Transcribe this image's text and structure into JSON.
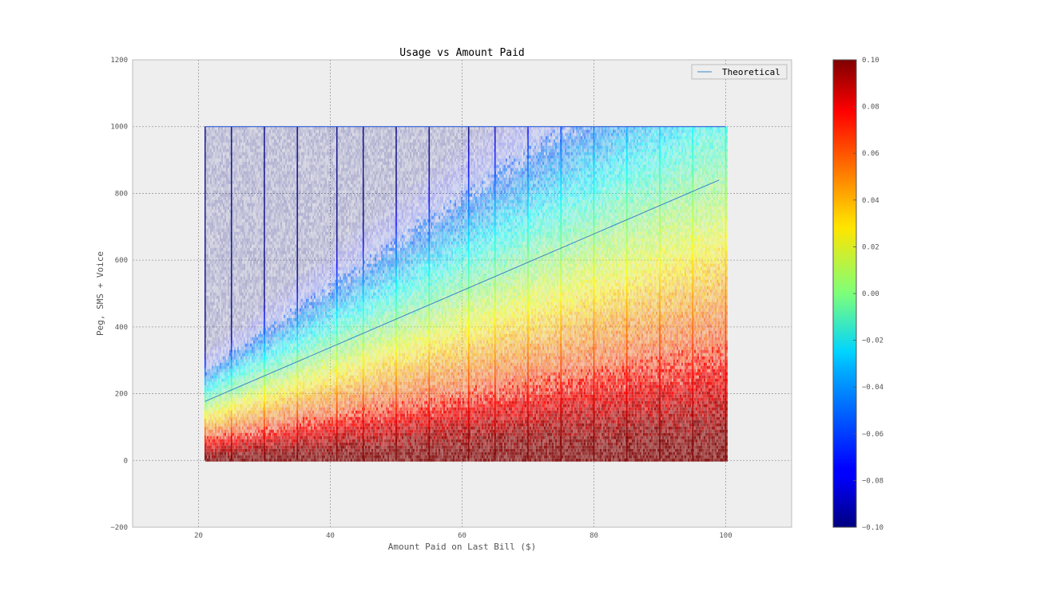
{
  "chart_data": {
    "type": "scatter",
    "title": "Usage vs Amount Paid",
    "xlabel": "Amount Paid on Last Bill ($)",
    "ylabel": "Peg, SMS + Voice",
    "xlim": [
      10,
      110
    ],
    "ylim": [
      -200,
      1200
    ],
    "x_ticks": [
      20,
      40,
      60,
      80,
      100
    ],
    "y_ticks": [
      -200,
      0,
      200,
      400,
      600,
      800,
      1000,
      1200
    ],
    "grid": true,
    "legend": {
      "position": "top-right",
      "entries": [
        "Theoretical"
      ]
    },
    "series": [
      {
        "name": "Theoretical",
        "kind": "line",
        "color": "#3a86c8",
        "x": [
          21,
          99
        ],
        "y": [
          177,
          840
        ]
      },
      {
        "kind": "scatter-density",
        "x_range": [
          21,
          100
        ],
        "y_range": [
          0,
          1000
        ],
        "description_vertical_stripes_at": [
          21,
          25,
          30,
          35,
          41,
          45,
          50,
          55,
          61,
          65,
          70,
          75,
          80,
          85,
          90,
          95,
          100
        ]
      }
    ],
    "colorbar": {
      "colormap": "jet",
      "min": -0.1,
      "max": 0.1,
      "tick_labels": [
        "0.10",
        "0.08",
        "0.06",
        "0.04",
        "0.02",
        "0.00",
        "−0.02",
        "−0.04",
        "−0.06",
        "−0.08",
        "−0.10"
      ]
    },
    "colors": {
      "axes_bg": "#eeeeee",
      "grid": "#999999",
      "text": "#555555",
      "title": "#000000"
    }
  }
}
